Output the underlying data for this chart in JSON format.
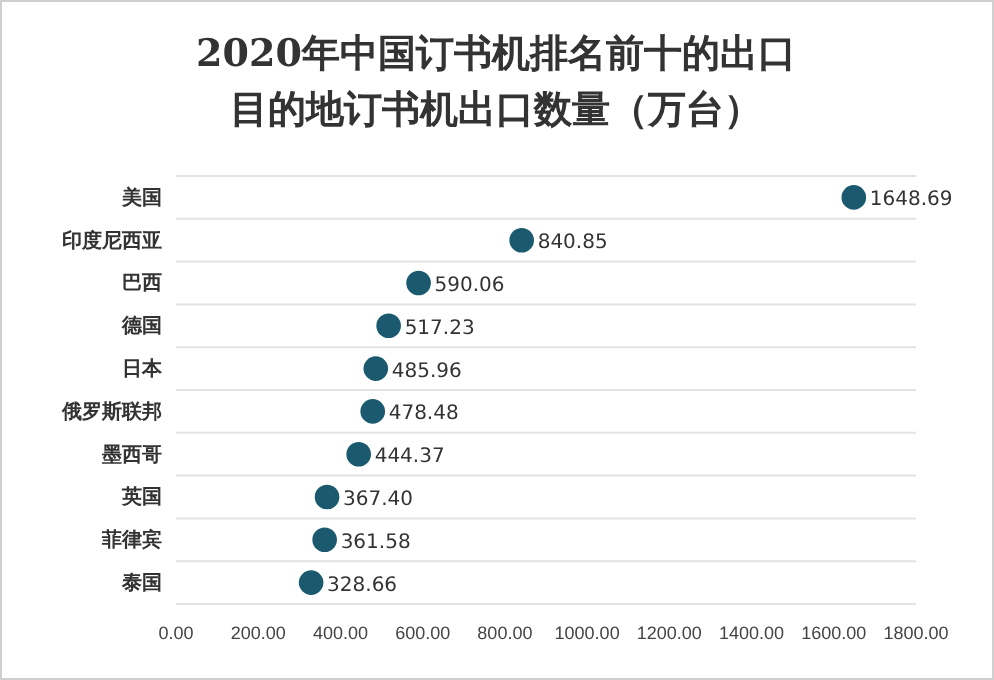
{
  "chart_data": {
    "type": "scatter",
    "orientation": "horizontal",
    "title": "2020年中国订书机排名前十的出口目的地订书机出口数量（万台）",
    "categories": [
      "美国",
      "印度尼西亚",
      "巴西",
      "德国",
      "日本",
      "俄罗斯联邦",
      "墨西哥",
      "英国",
      "菲律宾",
      "泰国"
    ],
    "values": [
      1648.69,
      840.85,
      590.06,
      517.23,
      485.96,
      478.48,
      444.37,
      367.4,
      361.58,
      328.66
    ],
    "value_labels": [
      "1648.69",
      "840.85",
      "590.06",
      "517.23",
      "485.96",
      "478.48",
      "444.37",
      "367.40",
      "361.58",
      "328.66"
    ],
    "color": "#1b5a6e",
    "marker": "circle",
    "grid": "y",
    "xlim": [
      0,
      1800
    ],
    "xticks": [
      {
        "value": 0,
        "label": "0.00"
      },
      {
        "value": 200,
        "label": "200.00"
      },
      {
        "value": 400,
        "label": "400.00"
      },
      {
        "value": 600,
        "label": "600.00"
      },
      {
        "value": 800,
        "label": "800.00"
      },
      {
        "value": 1000,
        "label": "1000.00"
      },
      {
        "value": 1200,
        "label": "1200.00"
      },
      {
        "value": 1400,
        "label": "1400.00"
      },
      {
        "value": 1600,
        "label": "1600.00"
      },
      {
        "value": 1800,
        "label": "1800.00"
      }
    ]
  }
}
